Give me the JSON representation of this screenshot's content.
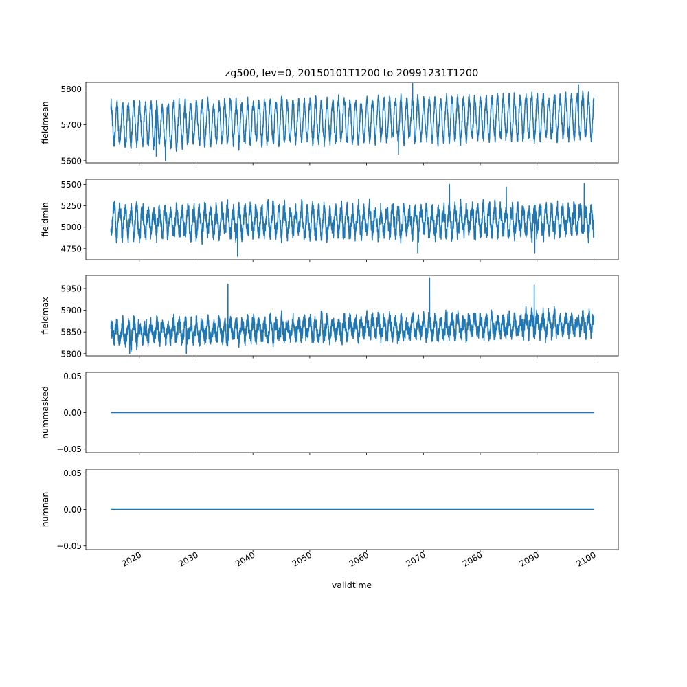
{
  "figure": {
    "title": "zg500, lev=0, 20150101T1200 to 20991231T1200",
    "xlabel": "validtime",
    "line_color": "#1f77b4"
  },
  "chart_data": [
    {
      "type": "line",
      "ylabel": "fieldmean",
      "x_range": [
        "2015-01-01",
        "2099-12-31"
      ],
      "xlim": [
        2010.6,
        2104.3
      ],
      "ylim": [
        5594,
        5818
      ],
      "yticks": [
        5600,
        5700,
        5800
      ],
      "xticks": [
        2020,
        2030,
        2040,
        2050,
        2060,
        2070,
        2080,
        2090,
        2100
      ],
      "xtick_labels_shown": false,
      "signal": {
        "mean_start": 5700,
        "mean_end": 5723,
        "seasonal_amplitude": 55,
        "noise": 12,
        "typical_min": 5625,
        "typical_max": 5785,
        "extremes": [
          {
            "year": 2023.0,
            "value": 5612
          },
          {
            "year": 2024.6,
            "value": 5600
          },
          {
            "year": 2068.1,
            "value": 5815
          },
          {
            "year": 2097.3,
            "value": 5812
          },
          {
            "year": 2065.6,
            "value": 5618
          }
        ]
      }
    },
    {
      "type": "line",
      "ylabel": "fieldmin",
      "x_range": [
        "2015-01-01",
        "2099-12-31"
      ],
      "xlim": [
        2010.6,
        2104.3
      ],
      "ylim": [
        4620,
        5560
      ],
      "yticks": [
        4750,
        5000,
        5250,
        5500
      ],
      "xticks": [
        2020,
        2030,
        2040,
        2050,
        2060,
        2070,
        2080,
        2090,
        2100
      ],
      "xtick_labels_shown": false,
      "signal": {
        "mean_start": 5060,
        "mean_end": 5080,
        "seasonal_amplitude": 140,
        "noise": 75,
        "typical_min": 4800,
        "typical_max": 5340,
        "extremes": [
          {
            "year": 2037.3,
            "value": 4660
          },
          {
            "year": 2069.0,
            "value": 4700
          },
          {
            "year": 2089.6,
            "value": 4700
          },
          {
            "year": 2098.3,
            "value": 5510
          },
          {
            "year": 2074.6,
            "value": 5500
          },
          {
            "year": 2084.6,
            "value": 5470
          }
        ]
      }
    },
    {
      "type": "line",
      "ylabel": "fieldmax",
      "x_range": [
        "2015-01-01",
        "2099-12-31"
      ],
      "xlim": [
        2010.6,
        2104.3
      ],
      "ylim": [
        5795,
        5980
      ],
      "yticks": [
        5800,
        5850,
        5900,
        5950
      ],
      "xticks": [
        2020,
        2030,
        2040,
        2050,
        2060,
        2070,
        2080,
        2090,
        2100
      ],
      "xtick_labels_shown": false,
      "signal": {
        "mean_start": 5848,
        "mean_end": 5868,
        "seasonal_amplitude": 18,
        "noise": 14,
        "typical_min": 5815,
        "typical_max": 5930,
        "extremes": [
          {
            "year": 2071.1,
            "value": 5975
          },
          {
            "year": 2035.6,
            "value": 5960
          },
          {
            "year": 2089.5,
            "value": 5958
          },
          {
            "year": 2028.3,
            "value": 5800
          },
          {
            "year": 2018.3,
            "value": 5800
          }
        ]
      }
    },
    {
      "type": "line",
      "ylabel": "nummasked",
      "x_range": [
        "2015-01-01",
        "2099-12-31"
      ],
      "xlim": [
        2010.6,
        2104.3
      ],
      "ylim": [
        -0.055,
        0.055
      ],
      "yticks": [
        -0.05,
        0.0,
        0.05
      ],
      "ytick_labels": [
        "−0.05",
        "0.00",
        "0.05"
      ],
      "xticks": [
        2020,
        2030,
        2040,
        2050,
        2060,
        2070,
        2080,
        2090,
        2100
      ],
      "xtick_labels_shown": false,
      "constant": 0
    },
    {
      "type": "line",
      "ylabel": "numnan",
      "x_range": [
        "2015-01-01",
        "2099-12-31"
      ],
      "xlim": [
        2010.6,
        2104.3
      ],
      "ylim": [
        -0.055,
        0.055
      ],
      "yticks": [
        -0.05,
        0.0,
        0.05
      ],
      "ytick_labels": [
        "−0.05",
        "0.00",
        "0.05"
      ],
      "xticks": [
        2020,
        2030,
        2040,
        2050,
        2060,
        2070,
        2080,
        2090,
        2100
      ],
      "xtick_labels": [
        "2020",
        "2030",
        "2040",
        "2050",
        "2060",
        "2070",
        "2080",
        "2090",
        "2100"
      ],
      "xtick_labels_shown": true,
      "constant": 0
    }
  ]
}
